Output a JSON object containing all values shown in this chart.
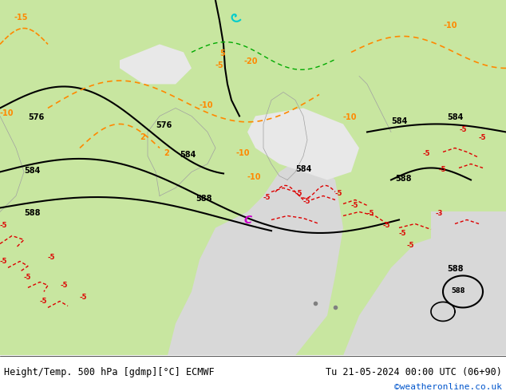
{
  "title_left": "Height/Temp. 500 hPa [gdmp][°C] ECMWF",
  "title_right": "Tu 21-05-2024 00:00 UTC (06+90)",
  "credit": "©weatheronline.co.uk",
  "bg_land_color": "#c8e6a0",
  "bg_sea_color": "#d8d8d8",
  "bg_land_light": "#e8f4c0",
  "border_color": "#a0a0a0",
  "contour_black_color": "#000000",
  "contour_orange_color": "#ff8800",
  "contour_red_color": "#dd0000",
  "contour_green_color": "#00aa00",
  "contour_cyan_color": "#00cccc",
  "label_black": "#000000",
  "label_orange": "#ff8800",
  "label_red": "#cc0000",
  "label_magenta": "#cc00cc",
  "bottom_bar_color": "#ffffff",
  "figsize": [
    6.34,
    4.9
  ],
  "dpi": 100
}
